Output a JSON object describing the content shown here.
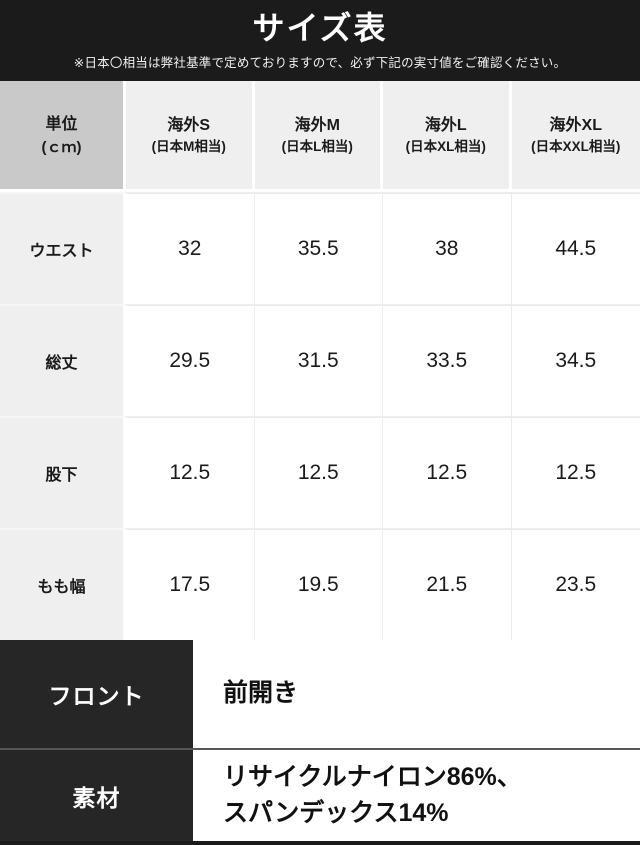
{
  "header": {
    "title": "サイズ表",
    "subtitle": "※日本〇相当は弊社基準で定めておりますので、必ず下記の実寸値をご確認ください。"
  },
  "table": {
    "unit_header": {
      "line1": "単位",
      "line2": "(ｃｍ)"
    },
    "columns": [
      {
        "line1": "海外S",
        "line2": "(日本M相当)"
      },
      {
        "line1": "海外M",
        "line2": "(日本L相当)"
      },
      {
        "line1": "海外L",
        "line2": "(日本XL相当)"
      },
      {
        "line1": "海外XL",
        "line2": "(日本XXL相当)"
      }
    ],
    "rows": [
      {
        "label": "ウエスト",
        "values": [
          "32",
          "35.5",
          "38",
          "44.5"
        ]
      },
      {
        "label": "総丈",
        "values": [
          "29.5",
          "31.5",
          "33.5",
          "34.5"
        ]
      },
      {
        "label": "股下",
        "values": [
          "12.5",
          "12.5",
          "12.5",
          "12.5"
        ]
      },
      {
        "label": "もも幅",
        "values": [
          "17.5",
          "19.5",
          "21.5",
          "23.5"
        ]
      }
    ]
  },
  "details": [
    {
      "label": "フロント",
      "value": "前開き"
    },
    {
      "label": "素材",
      "value_line1": "リサイクルナイロン86%、",
      "value_line2": "スパンデックス14%"
    }
  ],
  "colors": {
    "header_bg": "#1b1b1b",
    "detail_label_bg": "#262626",
    "unit_cell_bg": "#c9c9c9",
    "header_cell_bg": "#efefef",
    "row_divider": "#555555"
  },
  "chart_data": {
    "type": "table",
    "title": "サイズ表",
    "note": "※日本〇相当は弊社基準で定めておりますので、必ず下記の実寸値をご確認ください。",
    "unit": "cm",
    "columns": [
      "単位(ｃｍ)",
      "海外S(日本M相当)",
      "海外M(日本L相当)",
      "海外L(日本XL相当)",
      "海外XL(日本XXL相当)"
    ],
    "rows": [
      [
        "ウエスト",
        32,
        35.5,
        38,
        44.5
      ],
      [
        "総丈",
        29.5,
        31.5,
        33.5,
        34.5
      ],
      [
        "股下",
        12.5,
        12.5,
        12.5,
        12.5
      ],
      [
        "もも幅",
        17.5,
        19.5,
        21.5,
        23.5
      ]
    ],
    "extra_rows": [
      [
        "フロント",
        "前開き"
      ],
      [
        "素材",
        "リサイクルナイロン86%、スパンデックス14%"
      ]
    ]
  }
}
